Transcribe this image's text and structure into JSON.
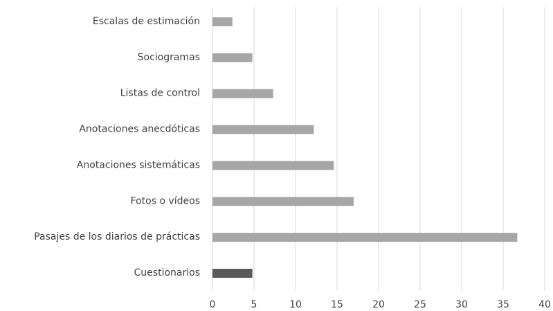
{
  "chart_data": {
    "type": "hbar",
    "categories": [
      "Escalas de estimación",
      "Sociogramas",
      "Listas de control",
      "Anotaciones anecdóticas",
      "Anotaciones sistemáticas",
      "Fotos o vídeos",
      "Pasajes de los diarios de prácticas",
      "Cuestionarios"
    ],
    "values": [
      2.4,
      4.8,
      7.3,
      12.2,
      14.6,
      17,
      36.7,
      4.8
    ],
    "colors": [
      "#a6a6a6",
      "#a6a6a6",
      "#a6a6a6",
      "#a6a6a6",
      "#a6a6a6",
      "#a6a6a6",
      "#a6a6a6",
      "#595959"
    ],
    "xlim": [
      0,
      40
    ],
    "xticks": [
      0,
      5,
      10,
      15,
      20,
      25,
      30,
      35,
      40
    ],
    "grid": true
  }
}
